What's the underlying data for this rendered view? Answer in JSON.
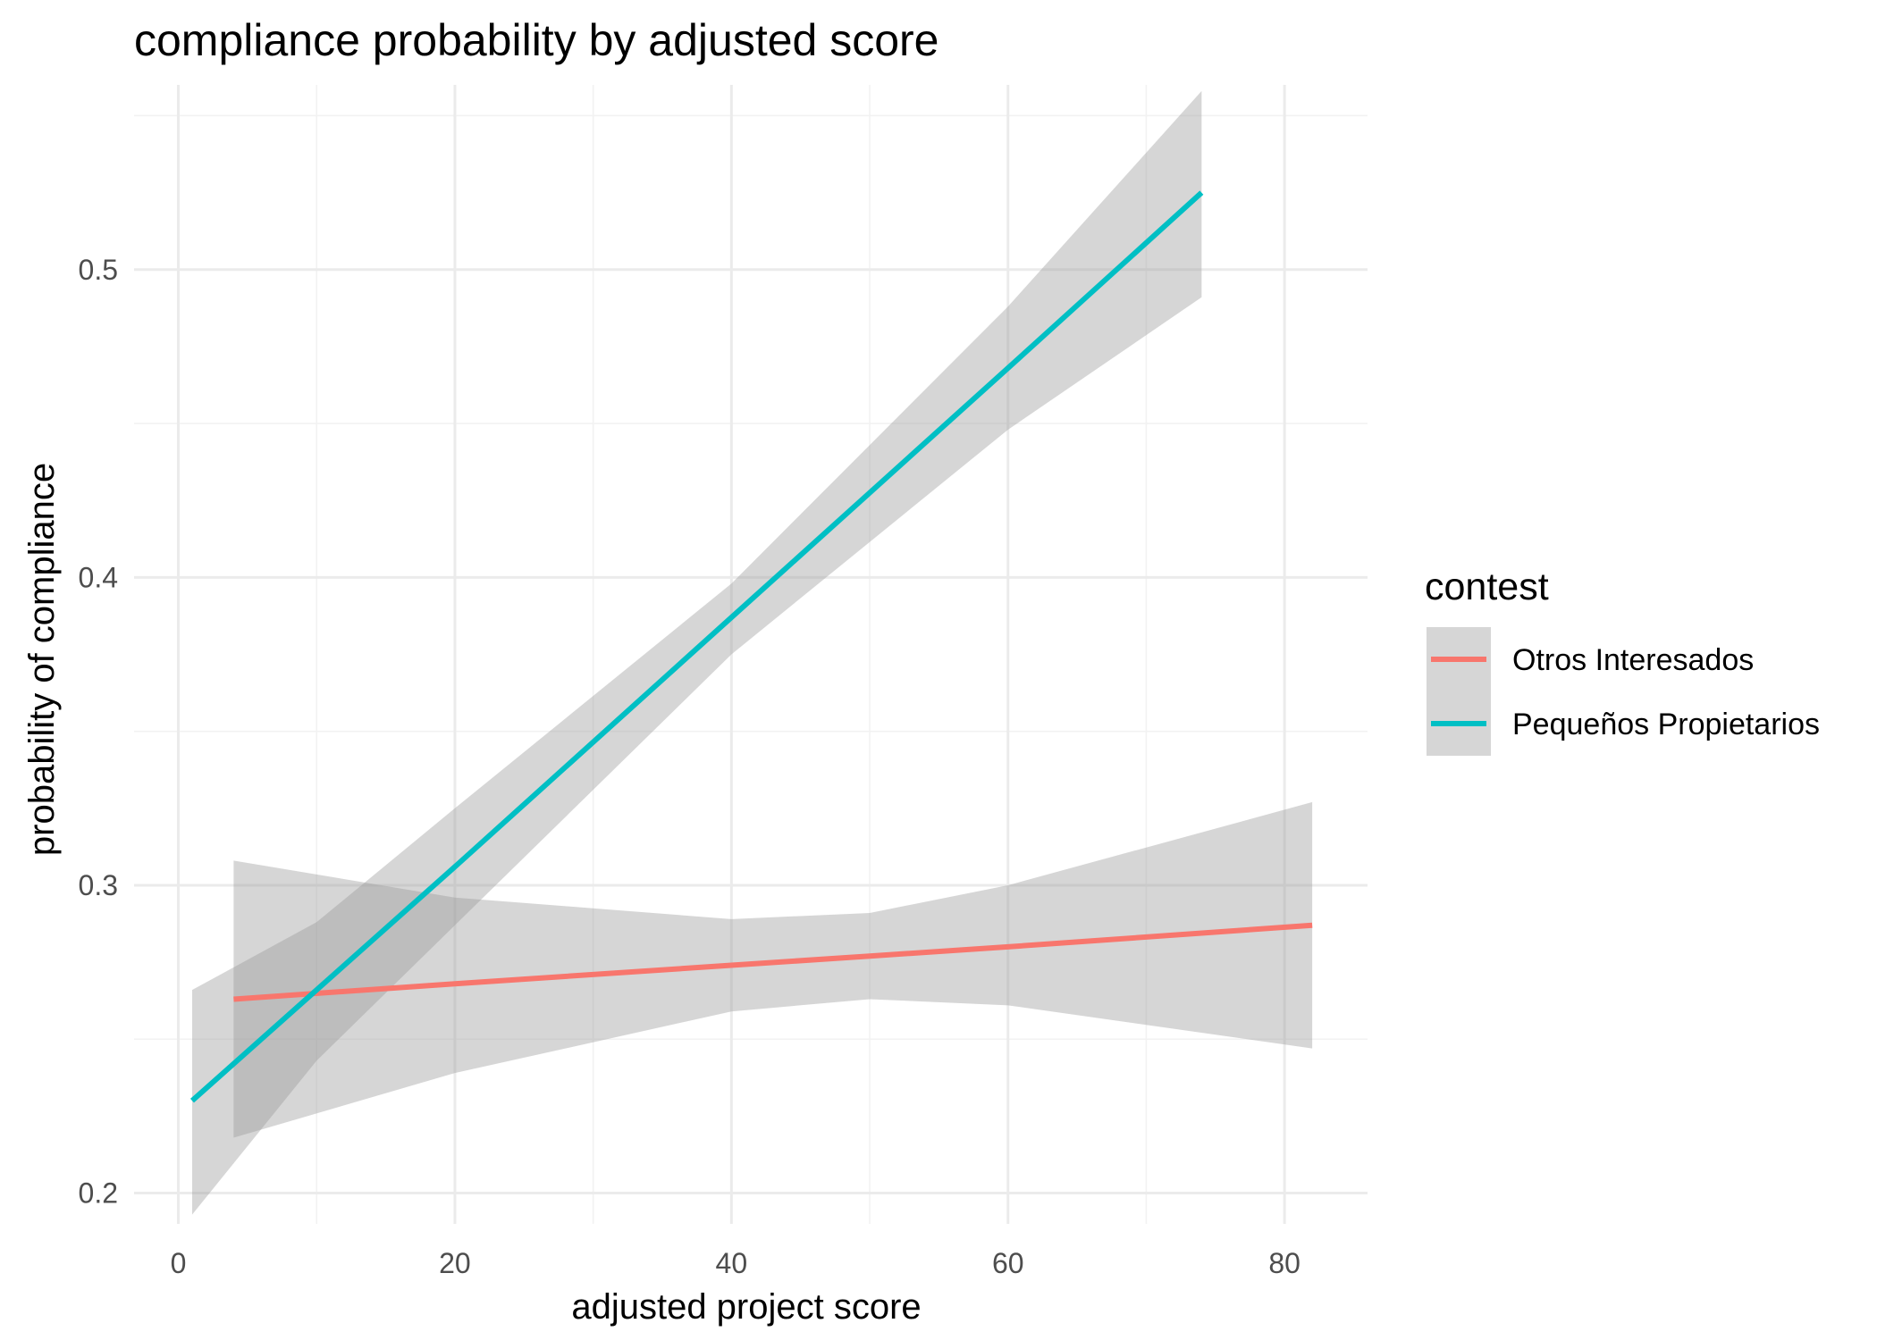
{
  "chart_data": {
    "type": "line",
    "title": "compliance probability by adjusted score",
    "xlabel": "adjusted project score",
    "ylabel": "probability of compliance",
    "xlim": [
      -3.2,
      86
    ],
    "ylim": [
      0.19,
      0.56
    ],
    "x_ticks": [
      0,
      20,
      40,
      60,
      80
    ],
    "y_ticks": [
      0.2,
      0.3,
      0.4,
      0.5
    ],
    "x_tick_labels": [
      "0",
      "20",
      "40",
      "60",
      "80"
    ],
    "y_tick_labels": [
      "0.2",
      "0.3",
      "0.4",
      "0.5"
    ],
    "grid": true,
    "legend": {
      "title": "contest",
      "position": "right"
    },
    "series": [
      {
        "name": "Otros Interesados",
        "color": "#F8766D",
        "x": [
          4,
          20,
          40,
          50,
          60,
          82
        ],
        "y": [
          0.263,
          0.268,
          0.274,
          0.277,
          0.28,
          0.287
        ],
        "ci_upper": [
          0.308,
          0.296,
          0.289,
          0.291,
          0.3,
          0.327
        ],
        "ci_lower": [
          0.218,
          0.239,
          0.259,
          0.263,
          0.261,
          0.247
        ]
      },
      {
        "name": "Pequeños Propietarios",
        "color": "#00BFC4",
        "x": [
          1,
          10,
          20,
          40,
          60,
          74
        ],
        "y": [
          0.23,
          0.266,
          0.306,
          0.387,
          0.468,
          0.525
        ],
        "ci_upper": [
          0.266,
          0.288,
          0.325,
          0.398,
          0.488,
          0.558
        ],
        "ci_lower": [
          0.193,
          0.243,
          0.287,
          0.375,
          0.448,
          0.491
        ]
      }
    ],
    "ribbon_color": "#999999"
  }
}
